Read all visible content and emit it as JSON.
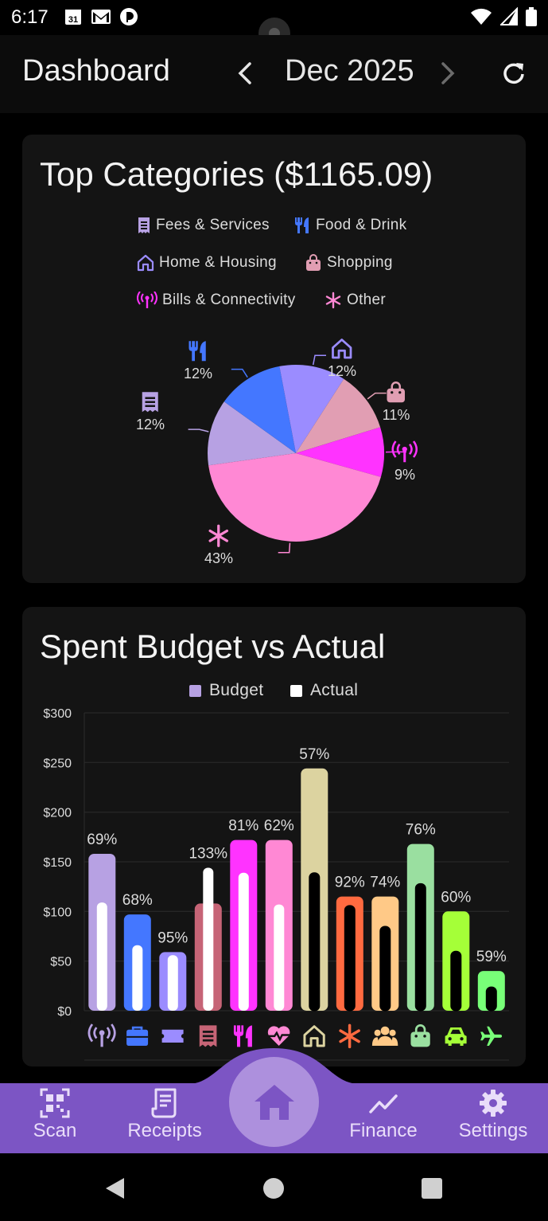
{
  "status": {
    "time": "6:17",
    "calendar_day": "31"
  },
  "appbar": {
    "title": "Dashboard",
    "month": "Dec 2025"
  },
  "top_categories": {
    "title": "Top Categories ($1165.09)",
    "legend": [
      {
        "label": "Fees & Services",
        "icon": "receipt-icon",
        "color": "#b7a1e3"
      },
      {
        "label": "Food & Drink",
        "icon": "fork-knife-icon",
        "color": "#4477ff"
      },
      {
        "label": "Home & Housing",
        "icon": "home-icon",
        "color": "#9b8cff"
      },
      {
        "label": "Shopping",
        "icon": "shopping-bag-icon",
        "color": "#e19eb3"
      },
      {
        "label": "Bills & Connectivity",
        "icon": "antenna-icon",
        "color": "#ff33ff"
      },
      {
        "label": "Other",
        "icon": "asterisk-icon",
        "color": "#ff88d4"
      }
    ]
  },
  "budget_chart": {
    "title": "Spent Budget vs Actual",
    "legend": [
      {
        "label": "Budget",
        "color": "#b7a1e3"
      },
      {
        "label": "Actual",
        "color": "#ffffff"
      }
    ]
  },
  "chart_data": [
    {
      "type": "pie",
      "title": "Top Categories ($1165.09)",
      "categories": [
        "Fees & Services",
        "Food & Drink",
        "Home & Housing",
        "Shopping",
        "Bills & Connectivity",
        "Other"
      ],
      "values": [
        12,
        12,
        12,
        11,
        9,
        43
      ],
      "labels": [
        "12%",
        "12%",
        "12%",
        "11%",
        "9%",
        "43%"
      ],
      "colors": [
        "#b7a1e3",
        "#4477ff",
        "#9b8cff",
        "#e19eb3",
        "#ff33ff",
        "#ff88d4"
      ],
      "icons": [
        "receipt-icon",
        "fork-knife-icon",
        "home-icon",
        "shopping-bag-icon",
        "antenna-icon",
        "asterisk-icon"
      ]
    },
    {
      "type": "bar",
      "title": "Spent Budget vs Actual",
      "ylim": [
        0,
        300
      ],
      "yticks": [
        "$0",
        "$50",
        "$100",
        "$200",
        "$250",
        "$300"
      ],
      "ytick_values": [
        0,
        50,
        100,
        200,
        250,
        300
      ],
      "yticks_all": [
        "$0",
        "$50",
        "$100",
        "$150",
        "$200",
        "$250",
        "$300"
      ],
      "grid": true,
      "legend_position": "top",
      "categories": [
        "Bills & Connectivity",
        "Work",
        "Entertainment",
        "Fees & Services",
        "Food & Drink",
        "Health",
        "Home & Housing",
        "Other",
        "Family",
        "Shopping",
        "Transport",
        "Travel"
      ],
      "icons": [
        "antenna-icon",
        "briefcase-icon",
        "ticket-icon",
        "receipt-icon",
        "fork-knife-icon",
        "heart-pulse-icon",
        "home-icon",
        "asterisk-icon",
        "people-icon",
        "shopping-bag-icon",
        "car-icon",
        "airplane-icon"
      ],
      "colors": [
        "#b7a1e3",
        "#4477ff",
        "#9b8cff",
        "#c66476",
        "#ff33ff",
        "#ff88d4",
        "#dcd3a0",
        "#ff6a40",
        "#ffc987",
        "#9adfa0",
        "#a5ff38",
        "#78ff78"
      ],
      "series": [
        {
          "name": "Budget",
          "values": [
            158,
            97,
            59,
            108,
            172,
            172,
            244,
            115,
            115,
            168,
            100,
            40
          ]
        },
        {
          "name": "Actual",
          "values": [
            109,
            66,
            56,
            144,
            139,
            107,
            139,
            106,
            85,
            128,
            60,
            24
          ]
        }
      ],
      "percent_labels": [
        "69%",
        "68%",
        "95%",
        "133%",
        "81%",
        "62%",
        "57%",
        "92%",
        "74%",
        "76%",
        "60%",
        "59%"
      ]
    }
  ],
  "bottom_nav": {
    "items": [
      {
        "label": "Scan",
        "icon": "qr-scan-icon"
      },
      {
        "label": "Receipts",
        "icon": "receipt-icon"
      },
      {
        "label": "",
        "icon": "home-icon"
      },
      {
        "label": "Finance",
        "icon": "trend-line-icon"
      },
      {
        "label": "Settings",
        "icon": "gear-icon"
      }
    ]
  }
}
